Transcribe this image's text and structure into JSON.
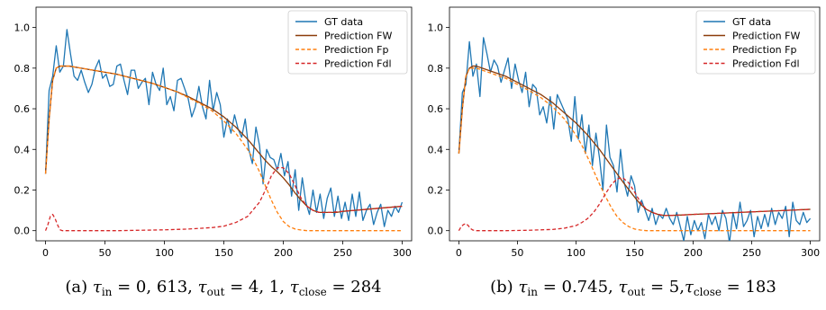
{
  "chart_data": [
    {
      "type": "line",
      "caption": {
        "label": "(a)",
        "parts": [
          {
            "sym": "τ",
            "sub": "in",
            "val": " = 0, 613, "
          },
          {
            "sym": "τ",
            "sub": "out",
            "val": " = 4, 1, "
          },
          {
            "sym": "τ",
            "sub": "close",
            "val": " = 284"
          }
        ]
      },
      "xlim": [
        -8,
        308
      ],
      "ylim": [
        -0.05,
        1.1
      ],
      "xticks": [
        0,
        50,
        100,
        150,
        200,
        250,
        300
      ],
      "yticks": [
        0.0,
        0.2,
        0.4,
        0.6,
        0.8,
        1.0
      ],
      "legend_position": "top-right",
      "series": [
        {
          "name": "GT data",
          "style": "solid",
          "color": "#1f77b4",
          "x": [
            0,
            3,
            6,
            9,
            12,
            15,
            18,
            21,
            24,
            27,
            30,
            33,
            36,
            39,
            42,
            45,
            48,
            51,
            54,
            57,
            60,
            63,
            66,
            69,
            72,
            75,
            78,
            81,
            84,
            87,
            90,
            93,
            96,
            99,
            102,
            105,
            108,
            111,
            114,
            117,
            120,
            123,
            126,
            129,
            132,
            135,
            138,
            141,
            144,
            147,
            150,
            153,
            156,
            159,
            162,
            165,
            168,
            171,
            174,
            177,
            180,
            183,
            186,
            189,
            192,
            195,
            198,
            201,
            204,
            207,
            210,
            213,
            216,
            219,
            222,
            225,
            228,
            231,
            234,
            237,
            240,
            243,
            246,
            249,
            252,
            255,
            258,
            261,
            264,
            267,
            270,
            273,
            276,
            279,
            282,
            285,
            288,
            291,
            294,
            297,
            300
          ],
          "y": [
            0.28,
            0.69,
            0.76,
            0.91,
            0.78,
            0.81,
            0.99,
            0.87,
            0.76,
            0.74,
            0.79,
            0.73,
            0.68,
            0.72,
            0.8,
            0.84,
            0.75,
            0.77,
            0.71,
            0.72,
            0.81,
            0.82,
            0.74,
            0.67,
            0.79,
            0.79,
            0.7,
            0.73,
            0.75,
            0.62,
            0.78,
            0.72,
            0.69,
            0.8,
            0.62,
            0.66,
            0.59,
            0.74,
            0.75,
            0.7,
            0.65,
            0.56,
            0.61,
            0.71,
            0.61,
            0.55,
            0.74,
            0.59,
            0.68,
            0.62,
            0.46,
            0.55,
            0.48,
            0.57,
            0.5,
            0.46,
            0.55,
            0.4,
            0.33,
            0.51,
            0.42,
            0.23,
            0.4,
            0.36,
            0.35,
            0.3,
            0.38,
            0.27,
            0.34,
            0.17,
            0.3,
            0.1,
            0.26,
            0.14,
            0.08,
            0.2,
            0.09,
            0.18,
            0.06,
            0.16,
            0.21,
            0.07,
            0.17,
            0.06,
            0.14,
            0.05,
            0.18,
            0.07,
            0.19,
            0.05,
            0.1,
            0.13,
            0.03,
            0.09,
            0.13,
            0.02,
            0.1,
            0.07,
            0.12,
            0.09,
            0.14
          ]
        },
        {
          "name": "Prediction FW",
          "style": "solid",
          "color": "#8c3c0a",
          "x": [
            0,
            3,
            6,
            9,
            12,
            15,
            20,
            30,
            40,
            50,
            60,
            70,
            80,
            90,
            100,
            110,
            120,
            130,
            140,
            150,
            160,
            170,
            180,
            185,
            190,
            195,
            200,
            205,
            210,
            215,
            220,
            225,
            230,
            235,
            240,
            245,
            250,
            260,
            270,
            280,
            290,
            300
          ],
          "y": [
            0.28,
            0.55,
            0.74,
            0.8,
            0.81,
            0.81,
            0.81,
            0.8,
            0.79,
            0.78,
            0.77,
            0.755,
            0.74,
            0.725,
            0.705,
            0.685,
            0.66,
            0.63,
            0.6,
            0.56,
            0.51,
            0.45,
            0.38,
            0.345,
            0.315,
            0.29,
            0.26,
            0.225,
            0.185,
            0.15,
            0.12,
            0.1,
            0.09,
            0.09,
            0.09,
            0.09,
            0.095,
            0.1,
            0.105,
            0.11,
            0.115,
            0.12
          ]
        },
        {
          "name": "Prediction Fp",
          "style": "dashed",
          "color": "#ff7f0e",
          "x": [
            0,
            3,
            6,
            9,
            12,
            15,
            20,
            30,
            40,
            50,
            60,
            70,
            80,
            90,
            100,
            110,
            120,
            130,
            140,
            150,
            160,
            170,
            175,
            180,
            185,
            190,
            195,
            200,
            205,
            210,
            215,
            220,
            225,
            230,
            240,
            250,
            260,
            280,
            300
          ],
          "y": [
            0.28,
            0.55,
            0.74,
            0.8,
            0.81,
            0.81,
            0.81,
            0.8,
            0.79,
            0.78,
            0.77,
            0.755,
            0.74,
            0.725,
            0.705,
            0.685,
            0.655,
            0.625,
            0.59,
            0.54,
            0.48,
            0.4,
            0.35,
            0.29,
            0.22,
            0.15,
            0.09,
            0.045,
            0.02,
            0.008,
            0.003,
            0.0,
            0.0,
            0.0,
            0.0,
            0.0,
            0.0,
            0.0,
            0.0
          ]
        },
        {
          "name": "Prediction Fdl",
          "style": "dashed",
          "color": "#d62728",
          "x": [
            0,
            2,
            4,
            6,
            8,
            10,
            12,
            14,
            20,
            40,
            60,
            80,
            100,
            120,
            140,
            150,
            160,
            170,
            180,
            185,
            190,
            195,
            200,
            205,
            210,
            215,
            220,
            225,
            230,
            240,
            250,
            260,
            270,
            280,
            290,
            300
          ],
          "y": [
            0.0,
            0.03,
            0.07,
            0.08,
            0.06,
            0.03,
            0.005,
            0.0,
            0.0,
            0.0,
            0.0,
            0.002,
            0.004,
            0.008,
            0.015,
            0.022,
            0.04,
            0.07,
            0.14,
            0.2,
            0.27,
            0.31,
            0.31,
            0.28,
            0.22,
            0.16,
            0.12,
            0.1,
            0.09,
            0.09,
            0.095,
            0.1,
            0.105,
            0.11,
            0.115,
            0.12
          ]
        }
      ]
    },
    {
      "type": "line",
      "caption": {
        "label": "(b)",
        "parts": [
          {
            "sym": "τ",
            "sub": "in",
            "val": " = 0.745, "
          },
          {
            "sym": "τ",
            "sub": "out",
            "val": " = 5,"
          },
          {
            "sym": "τ",
            "sub": "close",
            "val": " = 183"
          }
        ]
      },
      "xlim": [
        -8,
        308
      ],
      "ylim": [
        -0.05,
        1.1
      ],
      "xticks": [
        0,
        50,
        100,
        150,
        200,
        250,
        300
      ],
      "yticks": [
        0.0,
        0.2,
        0.4,
        0.6,
        0.8,
        1.0
      ],
      "legend_position": "top-right",
      "series": [
        {
          "name": "GT data",
          "style": "solid",
          "color": "#1f77b4",
          "x": [
            0,
            3,
            6,
            9,
            12,
            15,
            18,
            21,
            24,
            27,
            30,
            33,
            36,
            39,
            42,
            45,
            48,
            51,
            54,
            57,
            60,
            63,
            66,
            69,
            72,
            75,
            78,
            81,
            84,
            87,
            90,
            93,
            96,
            99,
            102,
            105,
            108,
            111,
            114,
            117,
            120,
            123,
            126,
            129,
            132,
            135,
            138,
            141,
            144,
            147,
            150,
            153,
            156,
            159,
            162,
            165,
            168,
            171,
            174,
            177,
            180,
            183,
            186,
            189,
            192,
            195,
            198,
            201,
            204,
            207,
            210,
            213,
            216,
            219,
            222,
            225,
            228,
            231,
            234,
            237,
            240,
            243,
            246,
            249,
            252,
            255,
            258,
            261,
            264,
            267,
            270,
            273,
            276,
            279,
            282,
            285,
            288,
            291,
            294,
            297,
            300
          ],
          "y": [
            0.38,
            0.68,
            0.72,
            0.93,
            0.76,
            0.82,
            0.66,
            0.95,
            0.87,
            0.78,
            0.84,
            0.81,
            0.73,
            0.79,
            0.85,
            0.7,
            0.82,
            0.74,
            0.68,
            0.78,
            0.61,
            0.72,
            0.7,
            0.57,
            0.61,
            0.53,
            0.66,
            0.5,
            0.67,
            0.63,
            0.59,
            0.55,
            0.44,
            0.66,
            0.45,
            0.57,
            0.38,
            0.52,
            0.32,
            0.48,
            0.36,
            0.2,
            0.52,
            0.36,
            0.32,
            0.19,
            0.4,
            0.24,
            0.17,
            0.27,
            0.22,
            0.09,
            0.15,
            0.1,
            0.05,
            0.11,
            0.03,
            0.08,
            0.06,
            0.11,
            0.06,
            0.03,
            0.09,
            0.02,
            -0.05,
            0.07,
            -0.02,
            0.05,
            0.0,
            0.04,
            -0.04,
            0.08,
            0.03,
            0.07,
            0.0,
            0.1,
            0.06,
            -0.06,
            0.09,
            0.01,
            0.14,
            0.02,
            0.05,
            0.1,
            -0.03,
            0.07,
            0.01,
            0.08,
            0.02,
            0.11,
            0.03,
            0.09,
            0.06,
            0.12,
            -0.03,
            0.14,
            0.05,
            0.03,
            0.09,
            0.04,
            0.06
          ]
        },
        {
          "name": "Prediction FW",
          "style": "solid",
          "color": "#8c3c0a",
          "x": [
            0,
            3,
            6,
            9,
            12,
            15,
            20,
            30,
            40,
            50,
            60,
            70,
            80,
            90,
            100,
            110,
            120,
            130,
            140,
            150,
            155,
            160,
            165,
            170,
            175,
            180,
            190,
            200,
            220,
            240,
            260,
            280,
            300
          ],
          "y": [
            0.38,
            0.6,
            0.76,
            0.8,
            0.81,
            0.81,
            0.8,
            0.78,
            0.76,
            0.73,
            0.7,
            0.67,
            0.63,
            0.58,
            0.53,
            0.47,
            0.4,
            0.32,
            0.24,
            0.165,
            0.13,
            0.105,
            0.09,
            0.08,
            0.075,
            0.075,
            0.077,
            0.08,
            0.085,
            0.09,
            0.095,
            0.1,
            0.105
          ]
        },
        {
          "name": "Prediction Fp",
          "style": "dashed",
          "color": "#ff7f0e",
          "x": [
            0,
            3,
            6,
            9,
            12,
            15,
            20,
            30,
            40,
            50,
            60,
            70,
            80,
            90,
            100,
            105,
            110,
            115,
            120,
            125,
            130,
            135,
            140,
            145,
            150,
            155,
            160,
            170,
            180,
            200,
            220,
            250,
            300
          ],
          "y": [
            0.38,
            0.6,
            0.76,
            0.8,
            0.8,
            0.8,
            0.79,
            0.77,
            0.75,
            0.72,
            0.69,
            0.655,
            0.61,
            0.55,
            0.47,
            0.42,
            0.36,
            0.295,
            0.23,
            0.17,
            0.115,
            0.07,
            0.04,
            0.02,
            0.008,
            0.003,
            0.0,
            0.0,
            0.0,
            0.0,
            0.0,
            0.0,
            0.0
          ]
        },
        {
          "name": "Prediction Fdl",
          "style": "dashed",
          "color": "#d62728",
          "x": [
            0,
            2,
            4,
            6,
            8,
            10,
            12,
            15,
            20,
            40,
            60,
            80,
            90,
            100,
            105,
            110,
            115,
            120,
            125,
            130,
            135,
            140,
            145,
            150,
            155,
            160,
            165,
            170,
            175,
            180,
            190,
            200,
            220,
            240,
            260,
            280,
            300
          ],
          "y": [
            0.0,
            0.02,
            0.03,
            0.035,
            0.025,
            0.01,
            0.003,
            0.0,
            0.0,
            0.0,
            0.002,
            0.006,
            0.012,
            0.025,
            0.04,
            0.06,
            0.09,
            0.13,
            0.18,
            0.225,
            0.255,
            0.26,
            0.235,
            0.19,
            0.14,
            0.105,
            0.09,
            0.08,
            0.075,
            0.075,
            0.077,
            0.08,
            0.085,
            0.09,
            0.095,
            0.1,
            0.105
          ]
        }
      ]
    }
  ]
}
